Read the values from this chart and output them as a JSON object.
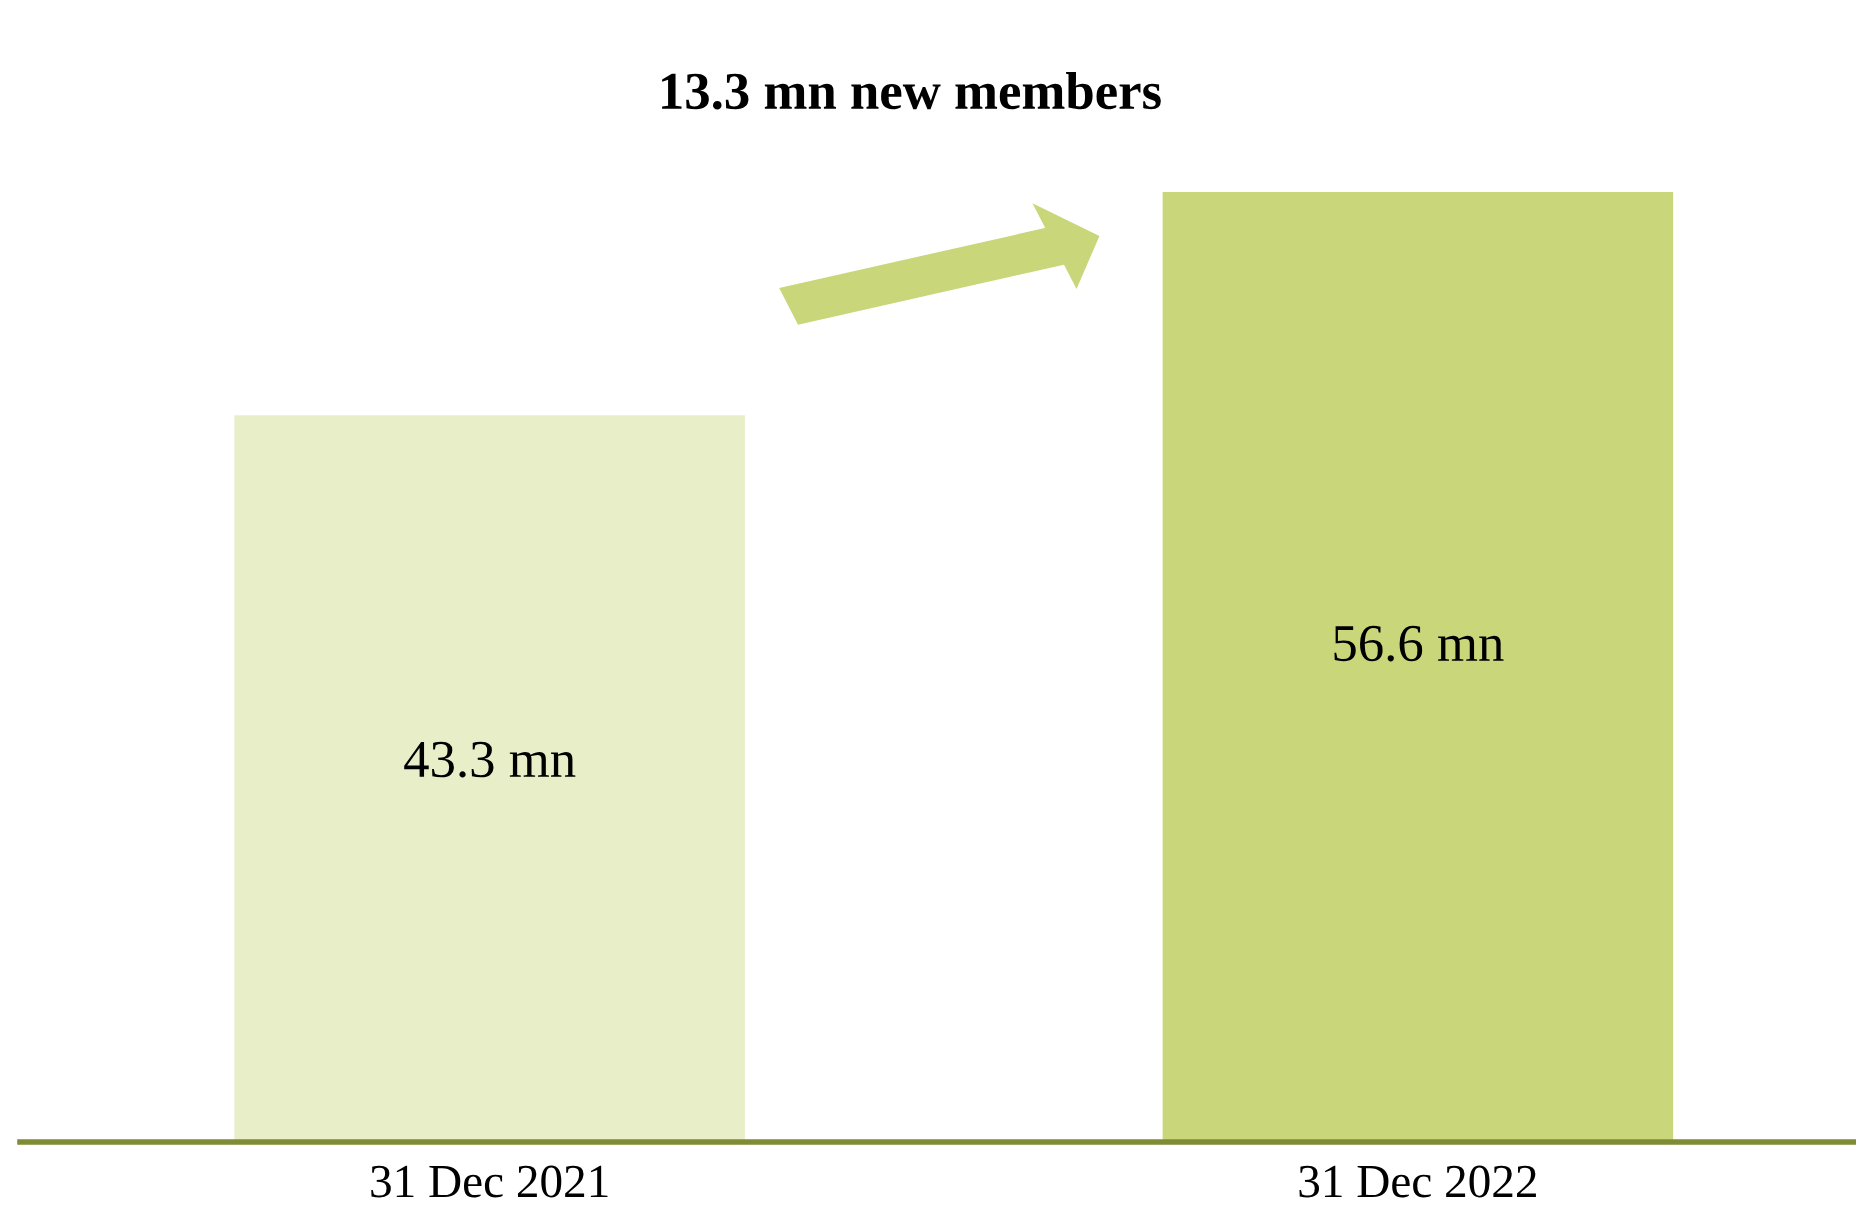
{
  "chart_data": {
    "type": "bar",
    "categories": [
      "31 Dec 2021",
      "31 Dec 2022"
    ],
    "values": [
      43.3,
      56.6
    ],
    "value_labels": [
      "43.3 mn",
      "56.6 mn"
    ],
    "colors": [
      "#e8eec8",
      "#c9d67a"
    ],
    "annotations": [
      "13.3 mn new members"
    ],
    "grid": false,
    "legend": false
  }
}
